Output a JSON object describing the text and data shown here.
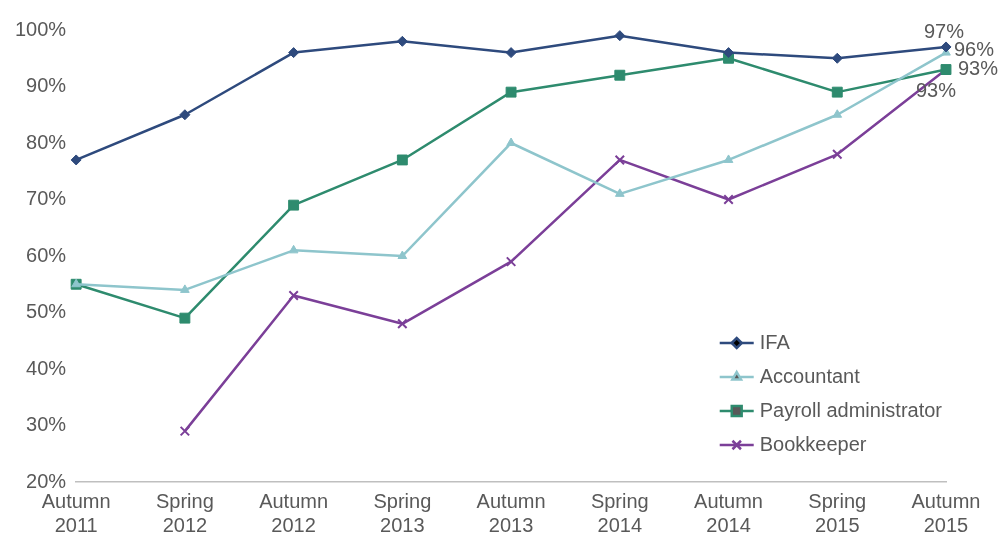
{
  "chart_data": {
    "type": "line",
    "categories": [
      "Autumn 2011",
      "Spring 2012",
      "Autumn 2012",
      "Spring 2013",
      "Autumn 2013",
      "Spring 2014",
      "Autumn 2014",
      "Spring 2015",
      "Autumn 2015"
    ],
    "series": [
      {
        "name": "IFA",
        "color": "#2e4a7d",
        "marker": "diamond",
        "values": [
          77,
          85,
          96,
          98,
          96,
          99,
          96,
          95,
          97
        ],
        "value_labels": [
          null,
          null,
          null,
          null,
          null,
          null,
          null,
          null,
          "97%"
        ]
      },
      {
        "name": "Accountant",
        "color": "#8ec5cc",
        "marker": "triangle",
        "values": [
          55,
          54,
          61,
          60,
          80,
          71,
          77,
          85,
          96
        ],
        "value_labels": [
          null,
          null,
          null,
          null,
          null,
          null,
          null,
          null,
          "96%"
        ]
      },
      {
        "name": "Payroll administrator",
        "color": "#2e8b6e",
        "marker": "square",
        "values": [
          55,
          49,
          69,
          77,
          89,
          92,
          95,
          89,
          93
        ],
        "value_labels": [
          null,
          null,
          null,
          null,
          null,
          null,
          null,
          null,
          "93%"
        ]
      },
      {
        "name": "Bookkeeper",
        "color": "#7b3f98",
        "marker": "cross",
        "values": [
          null,
          29,
          53,
          48,
          59,
          77,
          70,
          78,
          93
        ],
        "value_labels": [
          null,
          null,
          null,
          null,
          null,
          null,
          null,
          null,
          "93%"
        ]
      }
    ],
    "ylim": [
      20,
      100
    ],
    "yticks": [
      {
        "value": 20,
        "label": "20%"
      },
      {
        "value": 30,
        "label": "30%"
      },
      {
        "value": 40,
        "label": "40%"
      },
      {
        "value": 50,
        "label": "50%"
      },
      {
        "value": 60,
        "label": "60%"
      },
      {
        "value": 70,
        "label": "70%"
      },
      {
        "value": 80,
        "label": "80%"
      },
      {
        "value": 90,
        "label": "90%"
      },
      {
        "value": 100,
        "label": "100%"
      }
    ],
    "grid": false,
    "legend": "bottom right",
    "line_style": "solid"
  }
}
